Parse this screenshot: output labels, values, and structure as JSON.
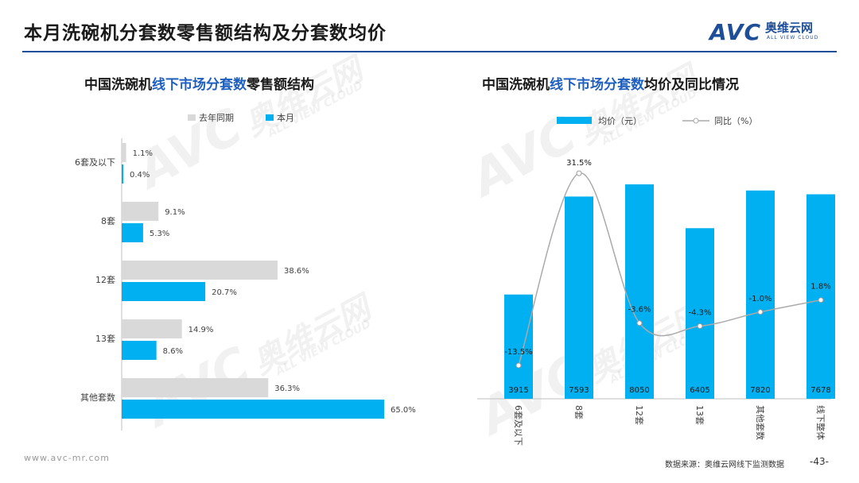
{
  "page": {
    "title": "本月洗碗机分套数零售额结构及分套数均价",
    "logo_mark": "AVC",
    "logo_cn": "奥维云网",
    "logo_en": "ALL VIEW CLOUD",
    "watermark_mark": "AVC",
    "watermark_cn": "奥维云网",
    "watermark_en": "ALL VIEW CLOUD",
    "footer_url": "www.avc-mr.com",
    "footer_source": "数据来源：奥维云网线下监测数据",
    "page_number": "-43-"
  },
  "left_title": {
    "pre": "中国洗碗机",
    "highlight": "线下市场分套数",
    "post": "零售额结构"
  },
  "right_title": {
    "pre": "中国洗碗机",
    "highlight": "线下市场分套数",
    "post": "均价及同比情况"
  },
  "chart_data": [
    {
      "type": "bar",
      "orientation": "horizontal",
      "categories": [
        "6套及以下",
        "8套",
        "12套",
        "13套",
        "其他套数"
      ],
      "series": [
        {
          "name": "去年同期",
          "color": "#d9d9d9",
          "values": [
            1.1,
            9.1,
            38.6,
            14.9,
            36.3
          ],
          "labels": [
            "1.1%",
            "9.1%",
            "38.6%",
            "14.9%",
            "36.3%"
          ]
        },
        {
          "name": "本月",
          "color": "#00b0f0",
          "values": [
            0.4,
            5.3,
            20.7,
            8.6,
            65.0
          ],
          "labels": [
            "0.4%",
            "5.3%",
            "20.7%",
            "8.6%",
            "65.0%"
          ]
        }
      ],
      "xlim": [
        0,
        65
      ],
      "legend_position": "top"
    },
    {
      "type": "bar+line",
      "categories": [
        "6套及以下",
        "8套",
        "12套",
        "13套",
        "其他套数",
        "线下整体"
      ],
      "bar_series": {
        "name": "均价（元）",
        "color": "#00b0f0",
        "values": [
          3915,
          7593,
          8050,
          6405,
          7820,
          7678
        ],
        "labels": [
          "3915",
          "7593",
          "8050",
          "6405",
          "7820",
          "7678"
        ]
      },
      "line_series": {
        "name": "同比（%）",
        "color": "#aaaaaa",
        "values": [
          -13.5,
          31.5,
          -3.6,
          -4.3,
          -1.0,
          1.8
        ],
        "labels": [
          "-13.5%",
          "31.5%",
          "-3.6%",
          "-4.3%",
          "-1.0%",
          "1.8%"
        ]
      },
      "bar_ylim": [
        0,
        8500
      ],
      "line_ylim": [
        -15,
        33
      ],
      "legend_position": "top"
    }
  ]
}
